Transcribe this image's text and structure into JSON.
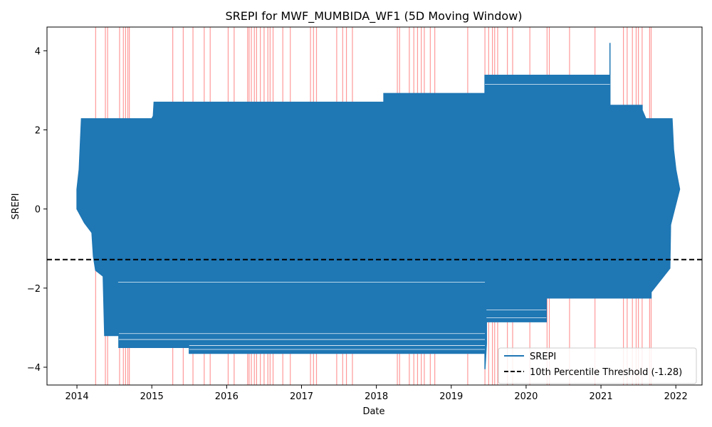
{
  "chart_data": {
    "type": "line",
    "title": "SREPI for MWF_MUMBIDA_WF1 (5D Moving Window)",
    "xlabel": "Date",
    "ylabel": "SREPI",
    "xlim": [
      2013.6,
      2022.35
    ],
    "ylim": [
      -4.45,
      4.6
    ],
    "x_ticks": [
      2014,
      2015,
      2016,
      2017,
      2018,
      2019,
      2020,
      2021,
      2022
    ],
    "y_ticks": [
      -4,
      -2,
      0,
      2,
      4
    ],
    "y_tick_labels": [
      "−4",
      "−2",
      "0",
      "2",
      "4"
    ],
    "grid": false,
    "legend_position": "lower-right",
    "threshold": {
      "name": "10th Percentile Threshold (-1.28)",
      "value": -1.28,
      "color": "#000000",
      "style": "dashed"
    },
    "series": [
      {
        "name": "SREPI",
        "color": "#1f77b4",
        "upper_envelope": [
          [
            2014.0,
            0.5
          ],
          [
            2014.03,
            1.0
          ],
          [
            2014.06,
            2.28
          ],
          [
            2015.0,
            2.28
          ],
          [
            2015.02,
            2.35
          ],
          [
            2015.03,
            2.7
          ],
          [
            2018.1,
            2.7
          ],
          [
            2018.1,
            2.92
          ],
          [
            2019.45,
            2.92
          ],
          [
            2019.45,
            3.38
          ],
          [
            2021.12,
            3.38
          ],
          [
            2021.12,
            4.2
          ],
          [
            2021.12,
            2.62
          ],
          [
            2021.55,
            2.62
          ],
          [
            2021.55,
            2.5
          ],
          [
            2021.6,
            2.28
          ],
          [
            2021.95,
            2.28
          ],
          [
            2021.97,
            1.5
          ],
          [
            2022.0,
            1.0
          ],
          [
            2022.05,
            0.5
          ]
        ],
        "lower_envelope": [
          [
            2014.0,
            0.0
          ],
          [
            2014.1,
            -0.35
          ],
          [
            2014.2,
            -0.6
          ],
          [
            2014.22,
            -1.2
          ],
          [
            2014.25,
            -1.55
          ],
          [
            2014.35,
            -1.7
          ],
          [
            2014.37,
            -3.2
          ],
          [
            2014.56,
            -3.2
          ],
          [
            2014.56,
            -3.5
          ],
          [
            2015.5,
            -3.5
          ],
          [
            2015.5,
            -3.65
          ],
          [
            2019.45,
            -3.65
          ],
          [
            2019.45,
            -4.05
          ],
          [
            2019.47,
            -3.4
          ],
          [
            2019.47,
            -2.85
          ],
          [
            2020.27,
            -2.85
          ],
          [
            2020.27,
            -2.25
          ],
          [
            2021.67,
            -2.25
          ],
          [
            2021.67,
            -2.1
          ],
          [
            2021.92,
            -1.5
          ],
          [
            2021.93,
            -0.4
          ],
          [
            2022.05,
            0.5
          ]
        ]
      }
    ],
    "shaded_spans": [
      2014.25,
      2014.38,
      2014.41,
      2014.57,
      2014.62,
      2014.65,
      2014.68,
      2014.7,
      2015.28,
      2015.42,
      2015.55,
      2015.7,
      2015.78,
      2016.02,
      2016.1,
      2016.28,
      2016.3,
      2016.33,
      2016.37,
      2016.4,
      2016.45,
      2016.5,
      2016.55,
      2016.58,
      2016.62,
      2016.75,
      2016.85,
      2017.12,
      2017.16,
      2017.2,
      2017.47,
      2017.55,
      2017.6,
      2017.68,
      2018.28,
      2018.31,
      2018.44,
      2018.5,
      2018.55,
      2018.6,
      2018.64,
      2018.72,
      2018.78,
      2019.22,
      2019.45,
      2019.5,
      2019.55,
      2019.58,
      2019.62,
      2019.75,
      2019.82,
      2020.05,
      2020.28,
      2020.31,
      2020.58,
      2020.92,
      2021.3,
      2021.35,
      2021.42,
      2021.47,
      2021.5,
      2021.55,
      2021.65,
      2021.67
    ],
    "shaded_color": "#ff0000"
  }
}
